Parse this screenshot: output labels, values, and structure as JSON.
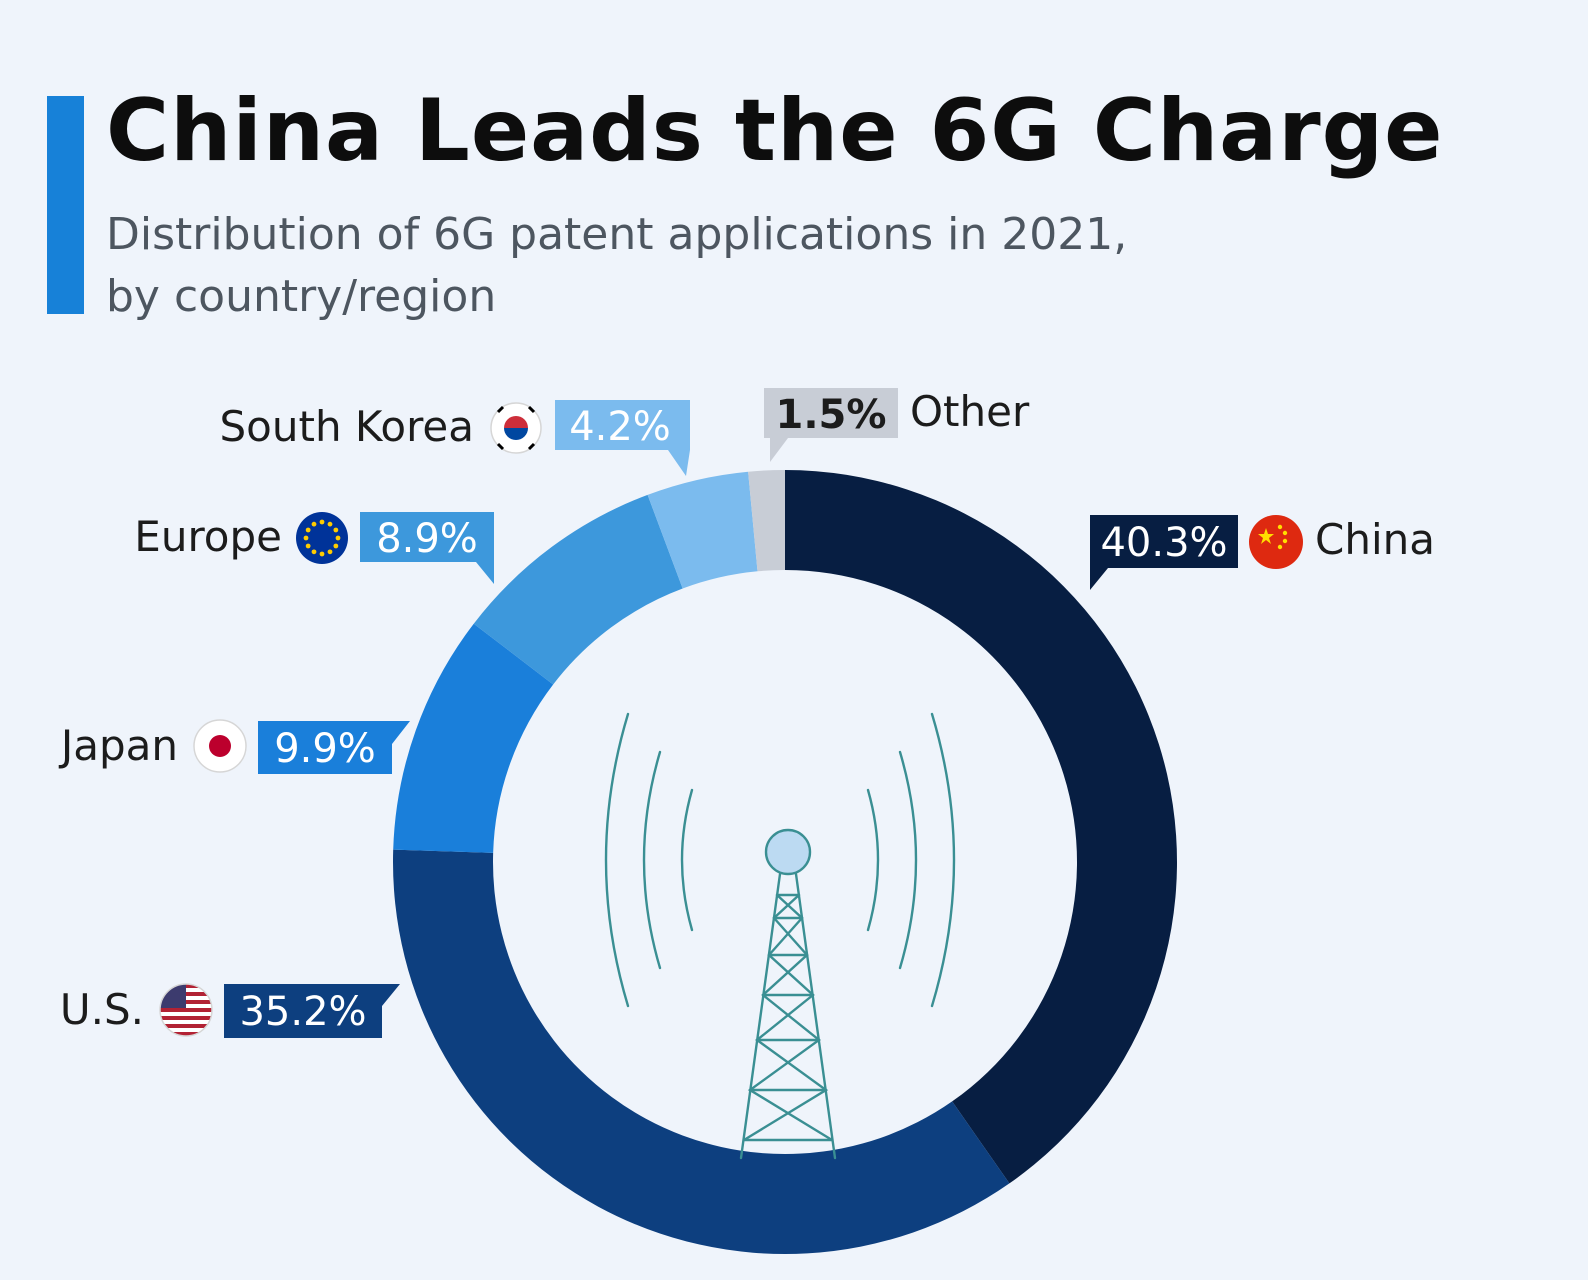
{
  "title": "China Leads the 6G Charge",
  "subtitle_line1": "Distribution of 6G patent applications in 2021,",
  "subtitle_line2": "by country/region",
  "colors": {
    "title_bar": "#1781d8",
    "background": "#eff4fb"
  },
  "chart_data": {
    "type": "pie",
    "variant": "donut",
    "unit": "%",
    "categories": [
      "China",
      "U.S.",
      "Japan",
      "Europe",
      "South Korea",
      "Other"
    ],
    "values": [
      40.3,
      35.2,
      9.9,
      8.9,
      4.2,
      1.5
    ],
    "value_labels": [
      "40.3%",
      "35.2%",
      "9.9%",
      "8.9%",
      "4.2%",
      "1.5%"
    ],
    "colors": [
      "#071e42",
      "#0d3f7f",
      "#1a7fda",
      "#3d98dc",
      "#7bbbee",
      "#c8cdd6"
    ],
    "label_text_colors": [
      "#ffffff",
      "#ffffff",
      "#ffffff",
      "#ffffff",
      "#ffffff",
      "#1c1c1c"
    ],
    "flag_icons": [
      "china-flag-icon",
      "us-flag-icon",
      "japan-flag-icon",
      "eu-flag-icon",
      "south-korea-flag-icon",
      ""
    ],
    "direction": "clockwise-from-top",
    "center_icon": "cell-tower-icon"
  }
}
